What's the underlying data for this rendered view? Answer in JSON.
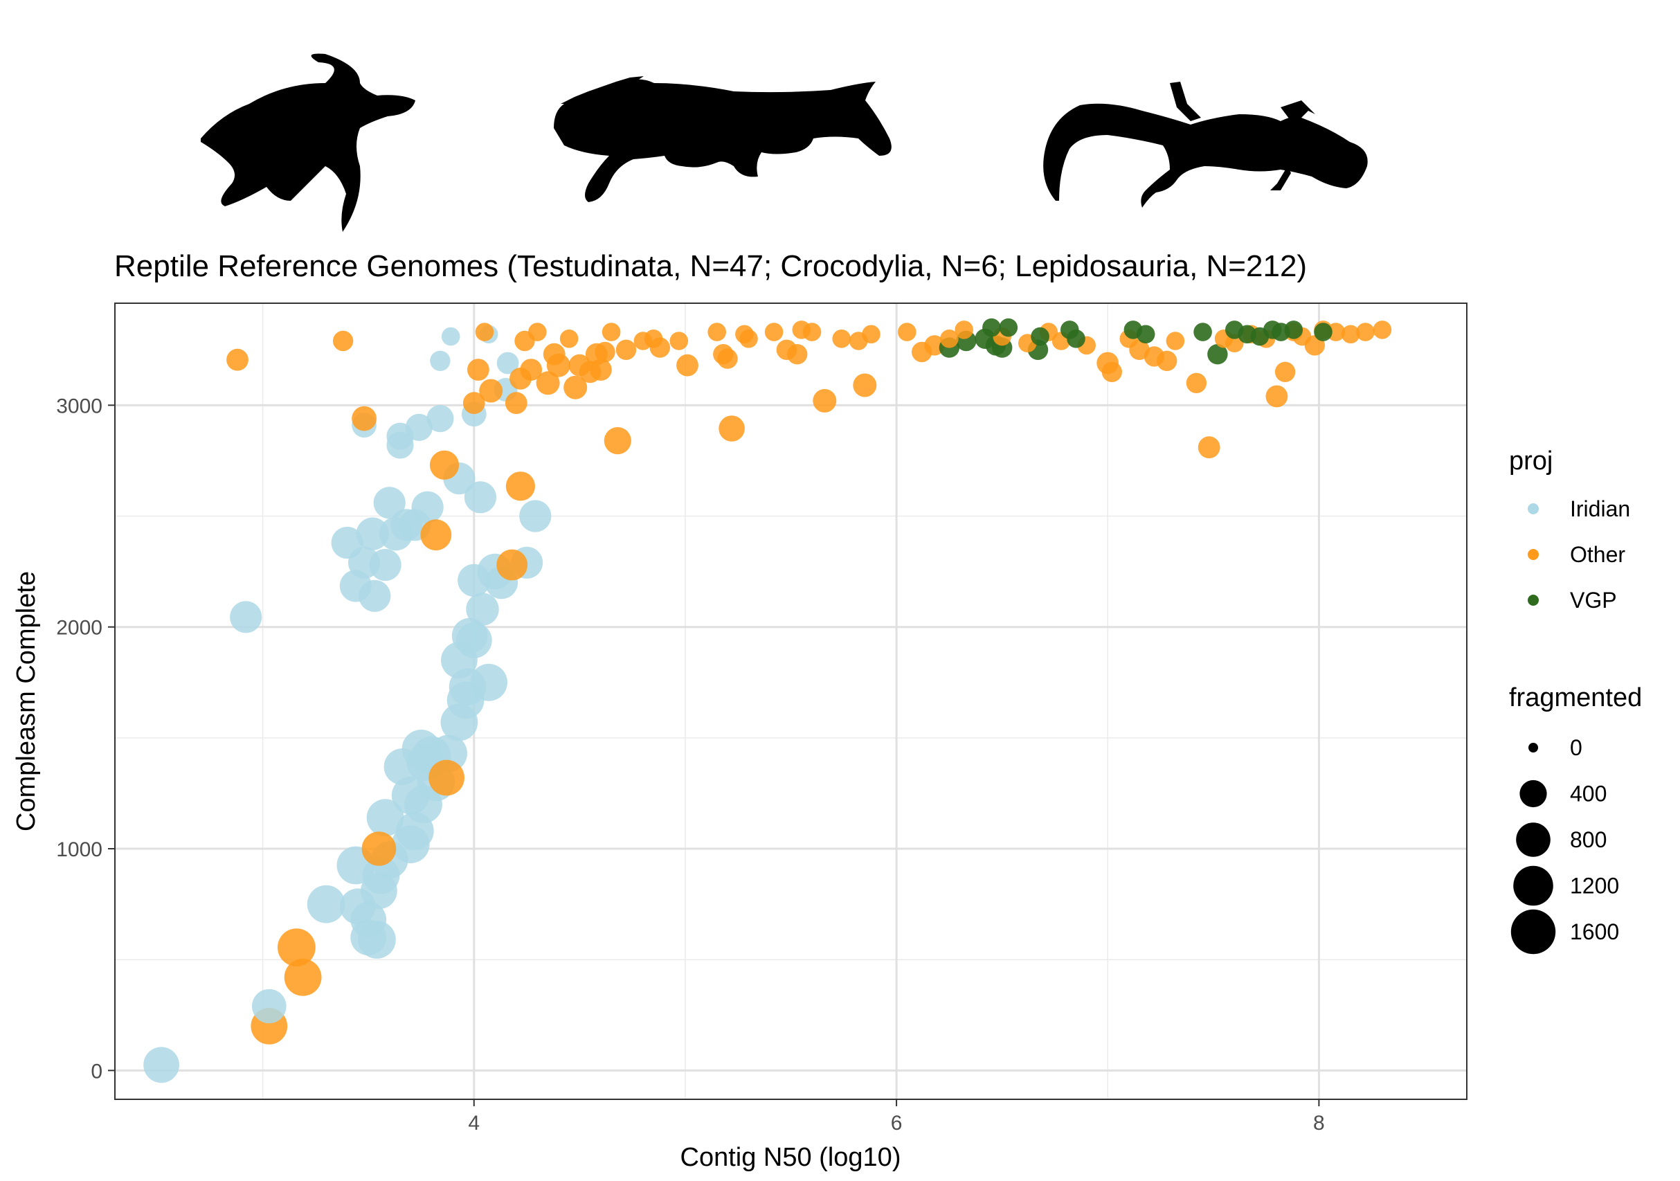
{
  "chart_data": {
    "type": "scatter",
    "title": "Reptile Reference Genomes (Testudinata, N=47; Crocodylia, N=6; Lepidosauria, N=212)",
    "xlabel": "Contig N50 (log10)",
    "ylabel": "Compleasm Complete",
    "xlim": [
      2.3,
      8.7
    ],
    "ylim": [
      -130,
      3460
    ],
    "x_ticks": [
      4,
      6,
      8
    ],
    "x_tick_labels": [
      "4",
      "6",
      "8"
    ],
    "y_ticks": [
      0,
      1000,
      2000,
      3000
    ],
    "y_tick_labels": [
      "0",
      "1000",
      "2000",
      "3000"
    ],
    "grid": true,
    "legend_position": "right",
    "colors": {
      "Iridian": "#add8e6",
      "Other": "#ff9a1a",
      "VGP": "#2e6b1e"
    },
    "legend": {
      "color_title": "proj",
      "color_entries": [
        "Iridian",
        "Other",
        "VGP"
      ],
      "size_title": "fragmented",
      "size_entries": [
        0,
        400,
        800,
        1200,
        1600
      ],
      "size_entry_labels": [
        "0",
        "400",
        "800",
        "1200",
        "1600"
      ]
    },
    "series": [
      {
        "name": "Iridian",
        "points": [
          [
            2.52,
            25,
            900
          ],
          [
            2.92,
            2045,
            650
          ],
          [
            3.03,
            290,
            800
          ],
          [
            3.3,
            750,
            1050
          ],
          [
            3.4,
            2380,
            650
          ],
          [
            3.44,
            2185,
            650
          ],
          [
            3.44,
            925,
            1050
          ],
          [
            3.45,
            740,
            900
          ],
          [
            3.48,
            2290,
            650
          ],
          [
            3.48,
            2910,
            300
          ],
          [
            3.5,
            680,
            900
          ],
          [
            3.5,
            600,
            900
          ],
          [
            3.52,
            2420,
            700
          ],
          [
            3.53,
            2140,
            650
          ],
          [
            3.54,
            590,
            1050
          ],
          [
            3.55,
            810,
            950
          ],
          [
            3.56,
            880,
            1000
          ],
          [
            3.58,
            2280,
            650
          ],
          [
            3.58,
            1140,
            1000
          ],
          [
            3.6,
            2560,
            650
          ],
          [
            3.6,
            950,
            1000
          ],
          [
            3.63,
            2420,
            750
          ],
          [
            3.65,
            2860,
            400
          ],
          [
            3.65,
            2820,
            400
          ],
          [
            3.66,
            1370,
            950
          ],
          [
            3.68,
            2460,
            650
          ],
          [
            3.7,
            1240,
            1050
          ],
          [
            3.7,
            1020,
            1050
          ],
          [
            3.72,
            1080,
            1050
          ],
          [
            3.72,
            2460,
            650
          ],
          [
            3.74,
            2900,
            400
          ],
          [
            3.75,
            1450,
            1100
          ],
          [
            3.76,
            1200,
            1050
          ],
          [
            3.77,
            1390,
            1050
          ],
          [
            3.78,
            2540,
            650
          ],
          [
            3.8,
            1420,
            1100
          ],
          [
            3.82,
            1300,
            1050
          ],
          [
            3.84,
            2940,
            400
          ],
          [
            3.88,
            1430,
            1000
          ],
          [
            3.93,
            2670,
            650
          ],
          [
            3.93,
            1850,
            950
          ],
          [
            3.93,
            1570,
            1000
          ],
          [
            3.96,
            1670,
            1000
          ],
          [
            3.97,
            1730,
            1000
          ],
          [
            3.98,
            1960,
            900
          ],
          [
            4.0,
            1940,
            900
          ],
          [
            4.0,
            2210,
            700
          ],
          [
            4.0,
            2960,
            300
          ],
          [
            4.03,
            2585,
            650
          ],
          [
            4.04,
            2080,
            700
          ],
          [
            4.07,
            1750,
            1000
          ],
          [
            4.1,
            2250,
            900
          ],
          [
            4.13,
            2200,
            700
          ],
          [
            4.15,
            3070,
            250
          ],
          [
            4.16,
            3190,
            200
          ],
          [
            4.25,
            2290,
            650
          ],
          [
            4.29,
            2500,
            650
          ],
          [
            3.84,
            3200,
            150
          ],
          [
            3.89,
            3310,
            100
          ],
          [
            4.07,
            3320,
            100
          ]
        ]
      },
      {
        "name": "Other",
        "points": [
          [
            2.88,
            3205,
            200
          ],
          [
            3.03,
            200,
            950
          ],
          [
            3.16,
            555,
            1050
          ],
          [
            3.19,
            420,
            1000
          ],
          [
            3.38,
            3290,
            150
          ],
          [
            3.48,
            2940,
            300
          ],
          [
            3.55,
            1000,
            800
          ],
          [
            3.82,
            2415,
            600
          ],
          [
            3.86,
            2730,
            500
          ],
          [
            3.87,
            1320,
            900
          ],
          [
            4.0,
            3010,
            200
          ],
          [
            4.02,
            3160,
            200
          ],
          [
            4.05,
            3330,
            100
          ],
          [
            4.08,
            3065,
            250
          ],
          [
            4.18,
            2280,
            600
          ],
          [
            4.2,
            3010,
            200
          ],
          [
            4.22,
            2635,
            500
          ],
          [
            4.22,
            3120,
            200
          ],
          [
            4.24,
            3290,
            150
          ],
          [
            4.27,
            3160,
            200
          ],
          [
            4.3,
            3330,
            100
          ],
          [
            4.35,
            3100,
            250
          ],
          [
            4.38,
            3230,
            200
          ],
          [
            4.4,
            3180,
            250
          ],
          [
            4.45,
            3300,
            100
          ],
          [
            4.48,
            3080,
            250
          ],
          [
            4.5,
            3180,
            200
          ],
          [
            4.55,
            3150,
            200
          ],
          [
            4.58,
            3230,
            200
          ],
          [
            4.6,
            3160,
            200
          ],
          [
            4.62,
            3240,
            150
          ],
          [
            4.65,
            3330,
            100
          ],
          [
            4.68,
            2840,
            400
          ],
          [
            4.72,
            3250,
            150
          ],
          [
            4.8,
            3290,
            100
          ],
          [
            4.85,
            3300,
            100
          ],
          [
            4.88,
            3260,
            150
          ],
          [
            4.97,
            3290,
            100
          ],
          [
            5.01,
            3180,
            200
          ],
          [
            5.15,
            3330,
            100
          ],
          [
            5.18,
            3230,
            150
          ],
          [
            5.2,
            3210,
            150
          ],
          [
            5.22,
            2895,
            350
          ],
          [
            5.28,
            3320,
            100
          ],
          [
            5.3,
            3300,
            100
          ],
          [
            5.42,
            3330,
            100
          ],
          [
            5.48,
            3250,
            150
          ],
          [
            5.53,
            3230,
            150
          ],
          [
            5.55,
            3340,
            100
          ],
          [
            5.6,
            3330,
            100
          ],
          [
            5.66,
            3020,
            250
          ],
          [
            5.74,
            3300,
            100
          ],
          [
            5.82,
            3290,
            100
          ],
          [
            5.85,
            3090,
            250
          ],
          [
            5.88,
            3320,
            100
          ],
          [
            6.05,
            3330,
            100
          ],
          [
            6.12,
            3240,
            150
          ],
          [
            6.18,
            3270,
            150
          ],
          [
            6.25,
            3300,
            100
          ],
          [
            6.32,
            3340,
            100
          ],
          [
            6.5,
            3310,
            100
          ],
          [
            6.62,
            3280,
            100
          ],
          [
            6.72,
            3330,
            100
          ],
          [
            6.78,
            3290,
            100
          ],
          [
            6.9,
            3270,
            100
          ],
          [
            7.0,
            3190,
            200
          ],
          [
            7.02,
            3150,
            150
          ],
          [
            7.1,
            3300,
            100
          ],
          [
            7.15,
            3250,
            150
          ],
          [
            7.22,
            3220,
            150
          ],
          [
            7.28,
            3200,
            150
          ],
          [
            7.32,
            3290,
            100
          ],
          [
            7.42,
            3100,
            150
          ],
          [
            7.48,
            2810,
            200
          ],
          [
            7.55,
            3300,
            100
          ],
          [
            7.6,
            3280,
            100
          ],
          [
            7.68,
            3320,
            100
          ],
          [
            7.75,
            3300,
            100
          ],
          [
            7.8,
            3040,
            200
          ],
          [
            7.84,
            3150,
            150
          ],
          [
            7.88,
            3330,
            100
          ],
          [
            7.92,
            3310,
            100
          ],
          [
            7.98,
            3270,
            150
          ],
          [
            8.02,
            3340,
            100
          ],
          [
            8.08,
            3330,
            100
          ],
          [
            8.15,
            3320,
            100
          ],
          [
            8.22,
            3330,
            100
          ],
          [
            8.3,
            3340,
            100
          ]
        ]
      },
      {
        "name": "VGP",
        "points": [
          [
            6.25,
            3260,
            150
          ],
          [
            6.33,
            3290,
            150
          ],
          [
            6.42,
            3300,
            150
          ],
          [
            6.45,
            3350,
            100
          ],
          [
            6.47,
            3270,
            150
          ],
          [
            6.5,
            3260,
            150
          ],
          [
            6.53,
            3350,
            100
          ],
          [
            6.67,
            3250,
            150
          ],
          [
            6.68,
            3310,
            100
          ],
          [
            6.82,
            3340,
            100
          ],
          [
            6.85,
            3300,
            100
          ],
          [
            7.12,
            3340,
            100
          ],
          [
            7.18,
            3320,
            100
          ],
          [
            7.45,
            3330,
            100
          ],
          [
            7.52,
            3230,
            150
          ],
          [
            7.6,
            3340,
            100
          ],
          [
            7.66,
            3320,
            100
          ],
          [
            7.72,
            3310,
            100
          ],
          [
            7.78,
            3340,
            100
          ],
          [
            7.82,
            3330,
            100
          ],
          [
            7.88,
            3340,
            100
          ],
          [
            8.02,
            3330,
            100
          ]
        ]
      }
    ]
  }
}
